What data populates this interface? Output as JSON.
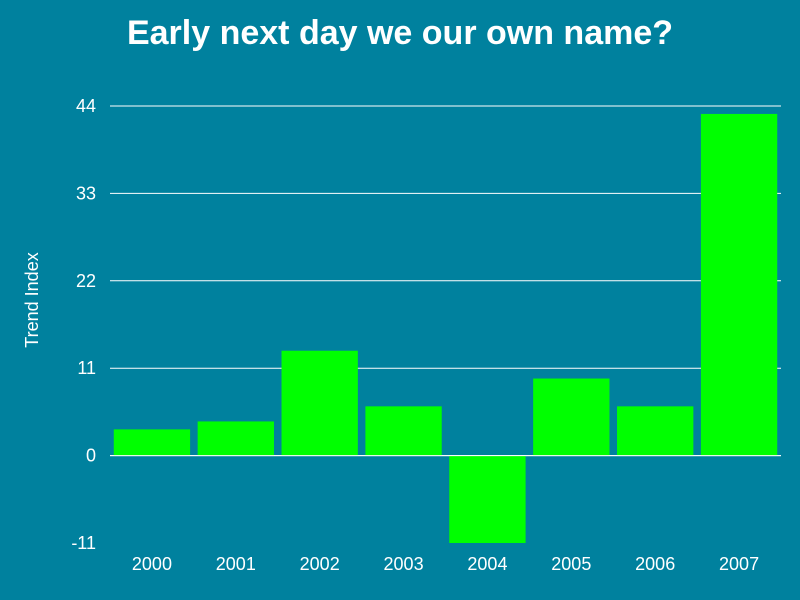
{
  "chart_data": {
    "type": "bar",
    "title": "Early next day we our own name?",
    "xlabel": "",
    "ylabel": "Trend Index",
    "categories": [
      "2000",
      "2001",
      "2002",
      "2003",
      "2004",
      "2005",
      "2006",
      "2007"
    ],
    "values": [
      3.3,
      4.3,
      13.2,
      6.2,
      -11.0,
      9.7,
      6.2,
      43.0
    ],
    "ylim": [
      -11,
      44
    ],
    "yticks": [
      -11,
      0,
      11,
      22,
      33,
      44
    ],
    "grid": true,
    "legend": "none",
    "colors": {
      "background": "#00819e",
      "bar": "#00ff00",
      "grid": "#ffffff",
      "text": "#ffffff"
    }
  }
}
